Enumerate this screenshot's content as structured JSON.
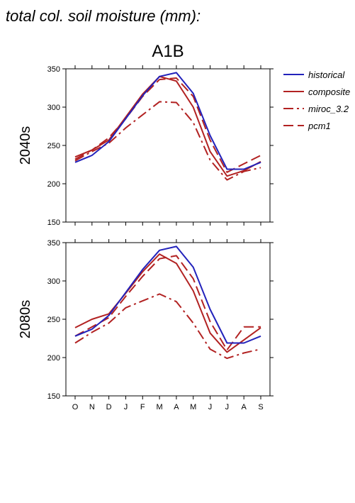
{
  "figure": {
    "title": "total col. soil moisture (mm):",
    "scenario": "A1B"
  },
  "legend": [
    {
      "name": "historical",
      "color": "#2222bb",
      "dash": "solid"
    },
    {
      "name": "composite",
      "color": "#b22222",
      "dash": "solid"
    },
    {
      "name": "miroc_3.2",
      "color": "#b22222",
      "dash": "dashdot"
    },
    {
      "name": "pcm1",
      "color": "#b22222",
      "dash": "dashed"
    }
  ],
  "chart_data": [
    {
      "type": "line",
      "row_label": "2040s",
      "categories": [
        "O",
        "N",
        "D",
        "J",
        "F",
        "M",
        "A",
        "M",
        "J",
        "J",
        "A",
        "S"
      ],
      "ylim": [
        150,
        350
      ],
      "yticks": [
        150,
        200,
        250,
        300,
        350
      ],
      "series": [
        {
          "name": "historical",
          "values": [
            228,
            237,
            255,
            285,
            315,
            340,
            345,
            318,
            263,
            219,
            219,
            228
          ]
        },
        {
          "name": "composite",
          "values": [
            235,
            244,
            257,
            287,
            317,
            340,
            334,
            300,
            242,
            210,
            217,
            229
          ]
        },
        {
          "name": "miroc_3.2",
          "values": [
            230,
            242,
            253,
            273,
            290,
            307,
            306,
            280,
            231,
            205,
            216,
            221
          ]
        },
        {
          "name": "pcm1",
          "values": [
            232,
            244,
            260,
            285,
            314,
            336,
            338,
            314,
            257,
            215,
            226,
            237
          ]
        }
      ]
    },
    {
      "type": "line",
      "row_label": "2080s",
      "categories": [
        "O",
        "N",
        "D",
        "J",
        "F",
        "M",
        "A",
        "M",
        "J",
        "J",
        "A",
        "S"
      ],
      "ylim": [
        150,
        350
      ],
      "yticks": [
        150,
        200,
        250,
        300,
        350
      ],
      "series": [
        {
          "name": "historical",
          "values": [
            228,
            237,
            255,
            285,
            315,
            340,
            345,
            318,
            263,
            219,
            219,
            228
          ]
        },
        {
          "name": "composite",
          "values": [
            239,
            250,
            257,
            284,
            312,
            335,
            323,
            287,
            232,
            207,
            223,
            239
          ]
        },
        {
          "name": "miroc_3.2",
          "values": [
            219,
            233,
            245,
            265,
            274,
            283,
            273,
            245,
            211,
            199,
            206,
            211
          ]
        },
        {
          "name": "pcm1",
          "values": [
            228,
            240,
            252,
            280,
            306,
            329,
            333,
            303,
            247,
            210,
            240,
            240
          ]
        }
      ]
    }
  ]
}
